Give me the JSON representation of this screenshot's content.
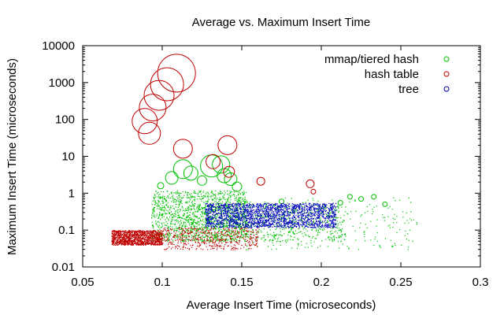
{
  "chart_data": {
    "type": "scatter",
    "title": "Average vs. Maximum Insert Time",
    "xlabel": "Average Insert Time (microseconds)",
    "ylabel": "Maximum Insert Time (microseconds)",
    "xlim": [
      0.05,
      0.3
    ],
    "ylim": [
      0.01,
      10000
    ],
    "yscale": "log",
    "x_ticks": [
      0.05,
      0.1,
      0.15,
      0.2,
      0.25,
      0.3
    ],
    "x_tick_labels": [
      "0.05",
      "0.1",
      "0.15",
      "0.2",
      "0.25",
      "0.3"
    ],
    "y_ticks": [
      0.01,
      0.1,
      1,
      10,
      100,
      1000,
      10000
    ],
    "y_tick_labels": [
      "0.01",
      "0.1",
      "1",
      "10",
      "100",
      "1000",
      "10000"
    ],
    "legend_position": "top-right",
    "grid": false,
    "series": [
      {
        "name": "mmap/tiered hash",
        "color": "#00c000",
        "clusters": [
          {
            "x": [
              0.093,
              0.153
            ],
            "y": [
              0.05,
              1.2
            ],
            "count": 1300
          },
          {
            "x": [
              0.11,
              0.215
            ],
            "y": [
              0.05,
              0.5
            ],
            "count": 800
          },
          {
            "x": [
              0.15,
              0.26
            ],
            "y": [
              0.03,
              0.8
            ],
            "count": 250
          }
        ],
        "big_points": [
          {
            "x": 0.113,
            "y": 4.5,
            "size": 12
          },
          {
            "x": 0.118,
            "y": 3.5,
            "size": 9
          },
          {
            "x": 0.131,
            "y": 5.5,
            "size": 14
          },
          {
            "x": 0.137,
            "y": 6.0,
            "size": 11
          },
          {
            "x": 0.139,
            "y": 3.0,
            "size": 9
          },
          {
            "x": 0.106,
            "y": 2.6,
            "size": 8
          },
          {
            "x": 0.143,
            "y": 2.4,
            "size": 8
          },
          {
            "x": 0.125,
            "y": 2.2,
            "size": 6
          },
          {
            "x": 0.147,
            "y": 1.5,
            "size": 6
          },
          {
            "x": 0.099,
            "y": 1.6,
            "size": 4
          },
          {
            "x": 0.175,
            "y": 0.6,
            "size": 3
          },
          {
            "x": 0.212,
            "y": 0.55,
            "size": 3
          },
          {
            "x": 0.24,
            "y": 0.5,
            "size": 3
          },
          {
            "x": 0.218,
            "y": 0.8,
            "size": 3
          },
          {
            "x": 0.225,
            "y": 0.7,
            "size": 3
          },
          {
            "x": 0.233,
            "y": 0.8,
            "size": 3
          }
        ]
      },
      {
        "name": "hash table",
        "color": "#c00000",
        "clusters": [
          {
            "x": [
              0.068,
              0.1
            ],
            "y": [
              0.04,
              0.1
            ],
            "count": 1200
          },
          {
            "x": [
              0.1,
              0.16
            ],
            "y": [
              0.03,
              0.12
            ],
            "count": 500
          }
        ],
        "big_points": [
          {
            "x": 0.109,
            "y": 1800,
            "size": 24
          },
          {
            "x": 0.103,
            "y": 900,
            "size": 21
          },
          {
            "x": 0.098,
            "y": 450,
            "size": 19
          },
          {
            "x": 0.094,
            "y": 210,
            "size": 17
          },
          {
            "x": 0.089,
            "y": 90,
            "size": 16
          },
          {
            "x": 0.092,
            "y": 42,
            "size": 14
          },
          {
            "x": 0.113,
            "y": 16,
            "size": 12
          },
          {
            "x": 0.141,
            "y": 20,
            "size": 12
          },
          {
            "x": 0.132,
            "y": 7.2,
            "size": 9
          },
          {
            "x": 0.142,
            "y": 3.8,
            "size": 7
          },
          {
            "x": 0.162,
            "y": 2.1,
            "size": 5
          },
          {
            "x": 0.193,
            "y": 1.8,
            "size": 5
          },
          {
            "x": 0.195,
            "y": 1.1,
            "size": 3
          }
        ]
      },
      {
        "name": "tree",
        "color": "#0000c0",
        "clusters": [
          {
            "x": [
              0.127,
              0.209
            ],
            "y": [
              0.12,
              0.55
            ],
            "count": 2000
          }
        ],
        "big_points": []
      }
    ]
  }
}
